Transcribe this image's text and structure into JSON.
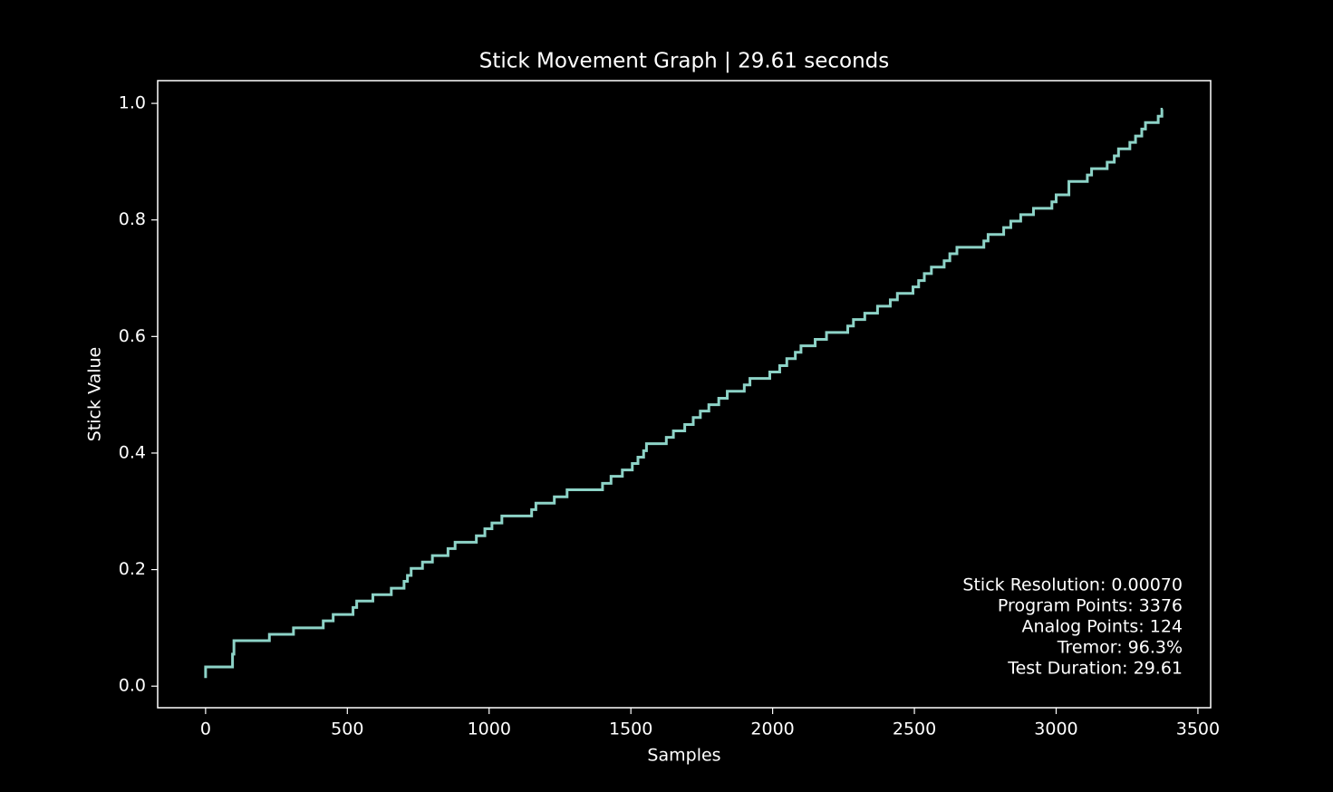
{
  "chart_data": {
    "type": "line",
    "title": "Stick Movement Graph | 29.61 seconds",
    "xlabel": "Samples",
    "ylabel": "Stick Value",
    "drawstyle": "steps-post",
    "color": "#8dd3c7",
    "xlim": [
      -169,
      3545
    ],
    "ylim": [
      -0.037,
      1.039
    ],
    "xticks": [
      0,
      500,
      1000,
      1500,
      2000,
      2500,
      3000,
      3500
    ],
    "yticks": [
      {
        "value": 0,
        "label": "0.0"
      },
      0.2,
      0.4,
      0.6,
      0.8,
      {
        "value": 1,
        "label": "1.0"
      }
    ],
    "annotations": [
      "Stick Resolution: 0.00070",
      "Program Points: 3376",
      "Analog Points: 124",
      "Tremor: 96.3%",
      "Test Duration: 29.61"
    ],
    "x": [
      0,
      0,
      95,
      100,
      225,
      310,
      415,
      450,
      520,
      533,
      590,
      655,
      700,
      712,
      725,
      765,
      800,
      855,
      880,
      955,
      985,
      1010,
      1045,
      1150,
      1165,
      1230,
      1275,
      1400,
      1430,
      1470,
      1505,
      1525,
      1545,
      1555,
      1625,
      1650,
      1690,
      1720,
      1745,
      1775,
      1810,
      1840,
      1900,
      1920,
      1990,
      2025,
      2050,
      2080,
      2100,
      2150,
      2190,
      2265,
      2285,
      2325,
      2370,
      2415,
      2440,
      2495,
      2515,
      2535,
      2560,
      2605,
      2625,
      2650,
      2745,
      2760,
      2815,
      2840,
      2875,
      2920,
      2985,
      3000,
      3045,
      3110,
      3125,
      3180,
      3205,
      3220,
      3260,
      3280,
      3302,
      3315,
      3360,
      3373,
      3376
    ],
    "values": [
      0.014,
      0.033,
      0.055,
      0.078,
      0.089,
      0.1,
      0.112,
      0.123,
      0.135,
      0.146,
      0.157,
      0.168,
      0.18,
      0.19,
      0.202,
      0.213,
      0.224,
      0.236,
      0.247,
      0.258,
      0.27,
      0.28,
      0.292,
      0.303,
      0.314,
      0.325,
      0.337,
      0.348,
      0.36,
      0.371,
      0.382,
      0.393,
      0.404,
      0.416,
      0.427,
      0.438,
      0.449,
      0.461,
      0.472,
      0.483,
      0.494,
      0.506,
      0.517,
      0.528,
      0.539,
      0.55,
      0.562,
      0.573,
      0.584,
      0.595,
      0.607,
      0.618,
      0.629,
      0.64,
      0.652,
      0.663,
      0.674,
      0.685,
      0.696,
      0.708,
      0.719,
      0.73,
      0.742,
      0.753,
      0.764,
      0.775,
      0.787,
      0.798,
      0.809,
      0.82,
      0.831,
      0.843,
      0.866,
      0.877,
      0.888,
      0.899,
      0.91,
      0.922,
      0.933,
      0.944,
      0.956,
      0.967,
      0.978,
      0.99,
      0.99
    ]
  }
}
